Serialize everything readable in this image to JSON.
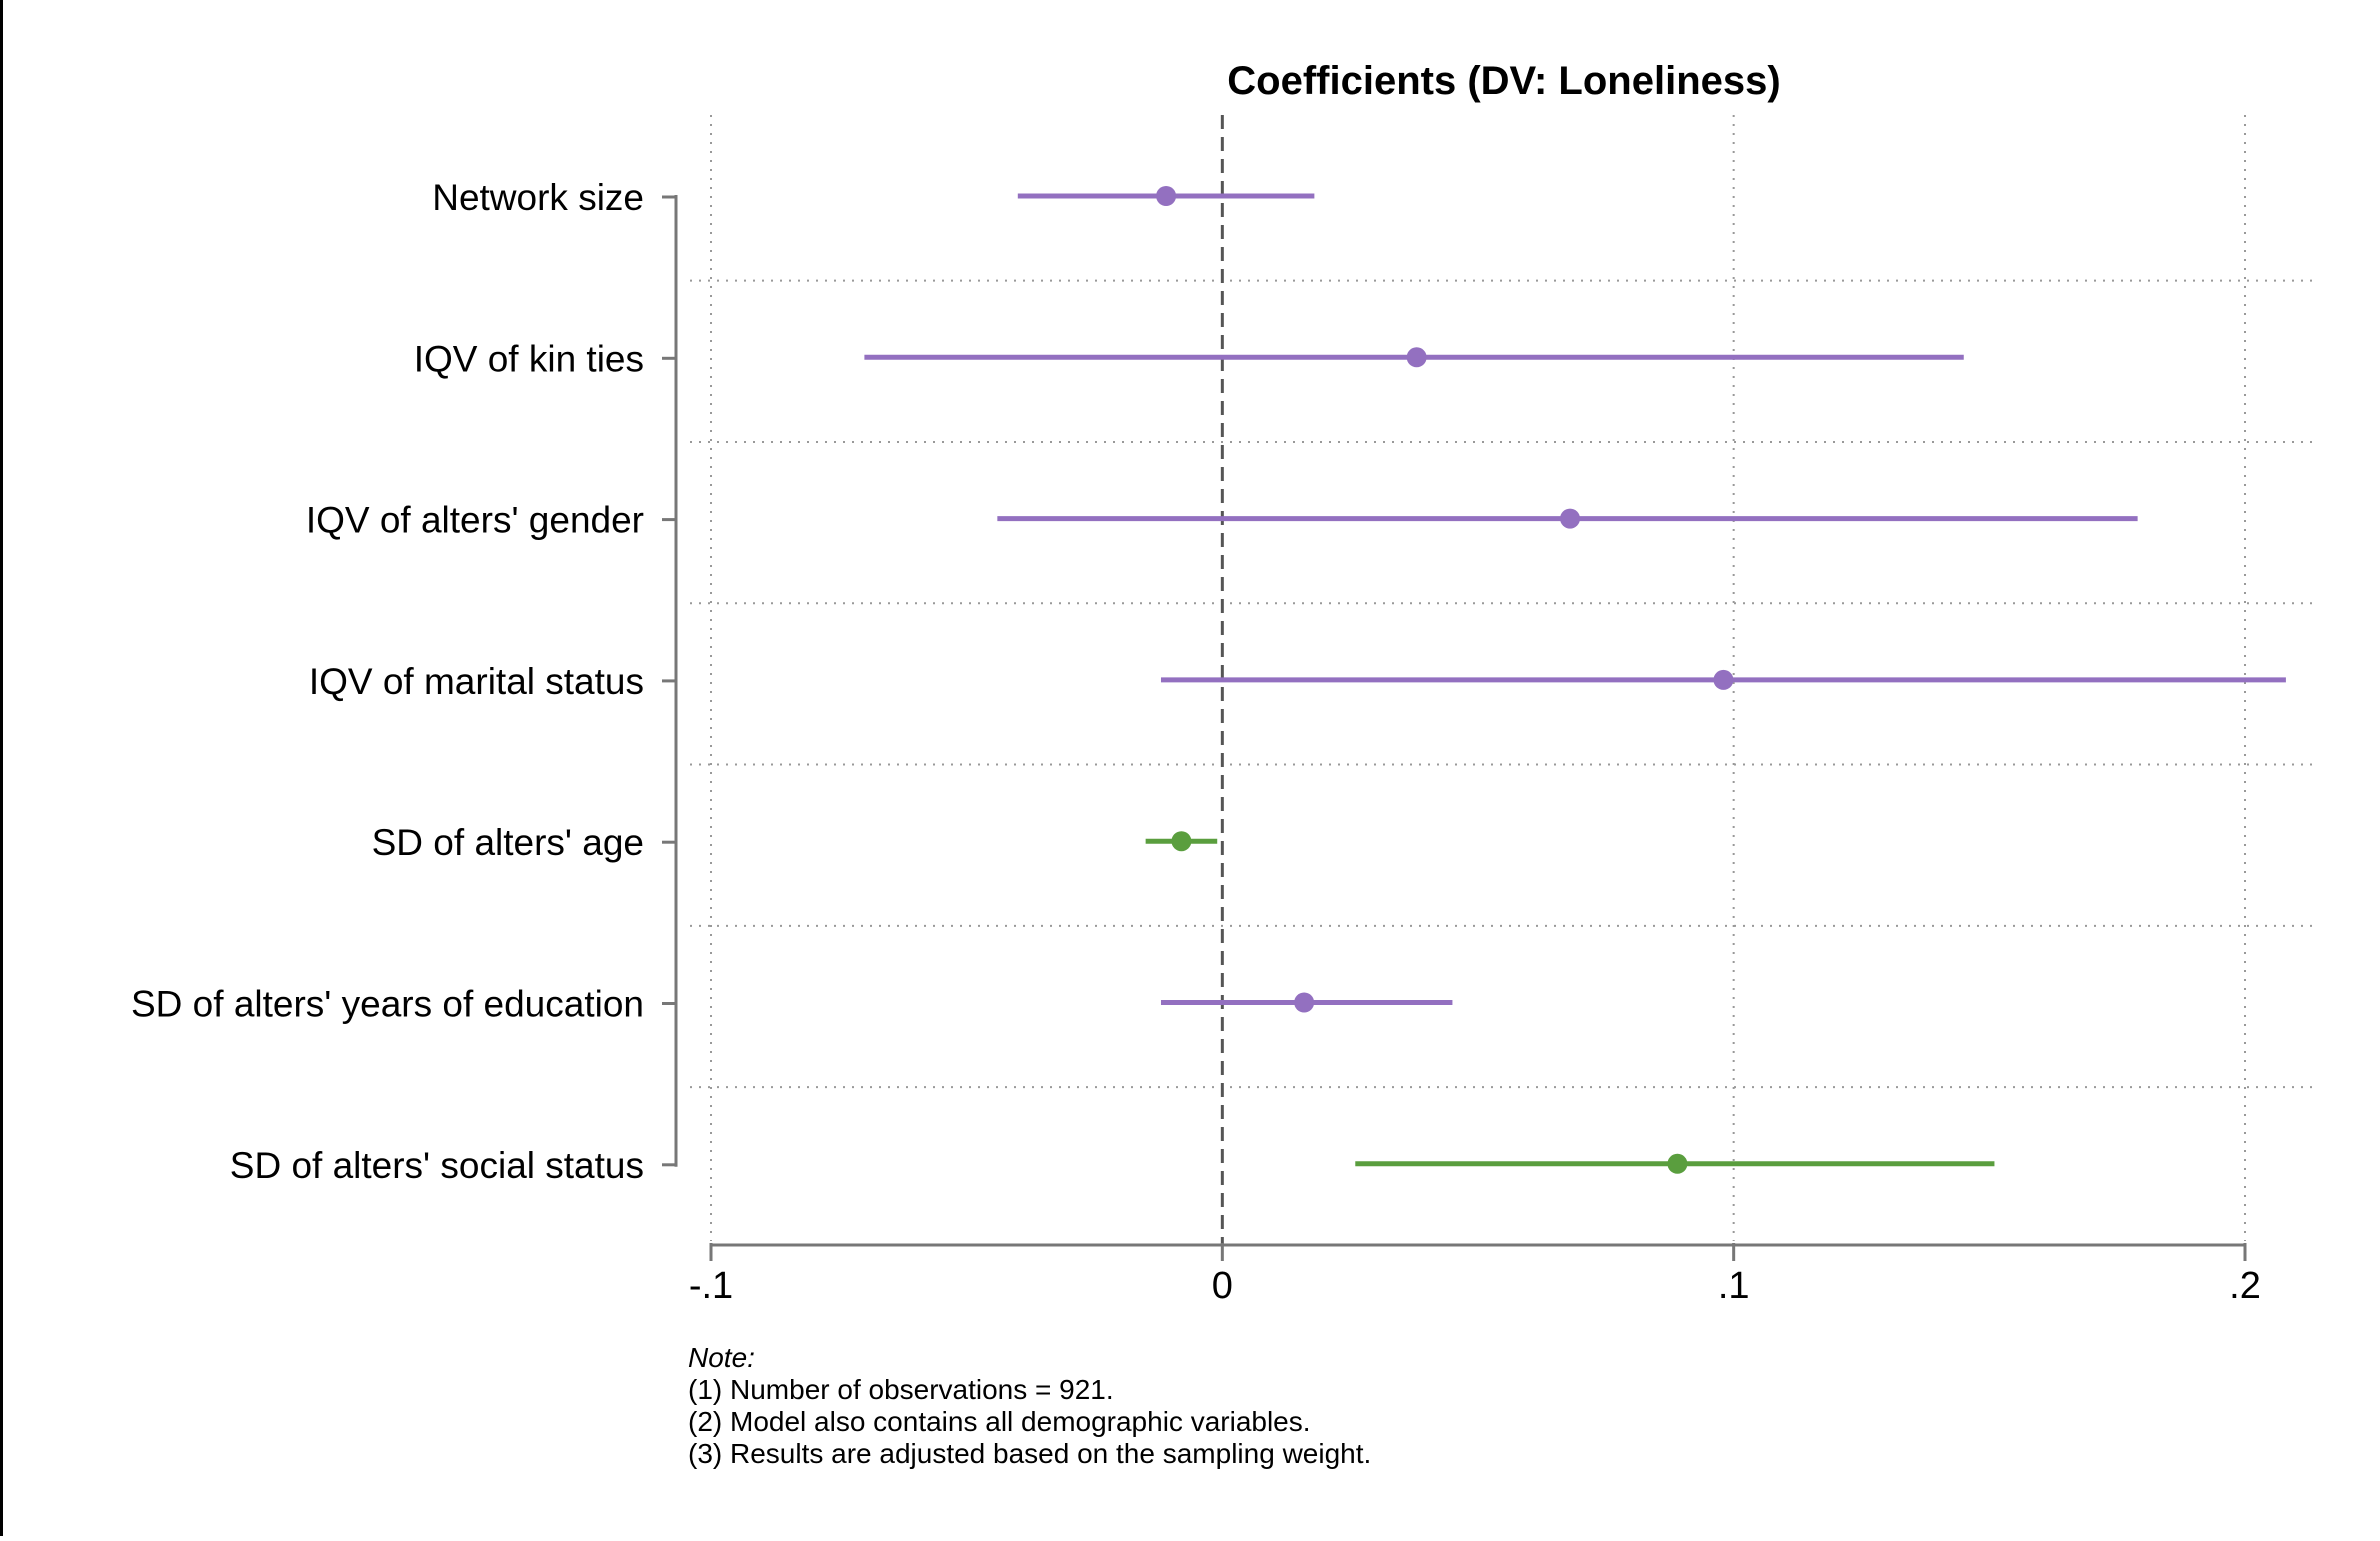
{
  "chart_data": {
    "type": "coefficient-plot",
    "title": "Coefficients (DV: Loneliness)",
    "xlim": [
      -0.1,
      0.2
    ],
    "x_ticks": [
      {
        "value": -0.1,
        "label": "-.1"
      },
      {
        "value": 0,
        "label": "0"
      },
      {
        "value": 0.1,
        "label": ".1"
      },
      {
        "value": 0.2,
        "label": ".2"
      }
    ],
    "reference_line": 0,
    "grid": true,
    "colors": {
      "purple": "#9370c0",
      "green": "#5a9e3e",
      "axis": "#777777",
      "grid": "#999999"
    },
    "categories": [
      "Network size",
      "IQV of kin ties",
      "IQV of alters' gender",
      "IQV of marital status",
      "SD of alters' age",
      "SD of alters' years of education",
      "SD of alters' social status"
    ],
    "points": [
      {
        "label": "Network size",
        "estimate": -0.011,
        "ci_low": -0.04,
        "ci_high": 0.018,
        "color": "purple"
      },
      {
        "label": "IQV of kin ties",
        "estimate": 0.038,
        "ci_low": -0.07,
        "ci_high": 0.145,
        "color": "purple"
      },
      {
        "label": "IQV of alters' gender",
        "estimate": 0.068,
        "ci_low": -0.044,
        "ci_high": 0.179,
        "color": "purple"
      },
      {
        "label": "IQV of marital status",
        "estimate": 0.098,
        "ci_low": -0.012,
        "ci_high": 0.208,
        "color": "purple"
      },
      {
        "label": "SD of alters' age",
        "estimate": -0.008,
        "ci_low": -0.015,
        "ci_high": -0.001,
        "color": "green"
      },
      {
        "label": "SD of alters' years of education",
        "estimate": 0.016,
        "ci_low": -0.012,
        "ci_high": 0.045,
        "color": "purple"
      },
      {
        "label": "SD of alters' social status",
        "estimate": 0.089,
        "ci_low": 0.026,
        "ci_high": 0.151,
        "color": "green"
      }
    ]
  },
  "note": {
    "title": "Note:",
    "lines": [
      "(1) Number of observations = 921.",
      "(2) Model also contains all demographic variables.",
      "(3) Results are adjusted based on the sampling weight."
    ]
  }
}
